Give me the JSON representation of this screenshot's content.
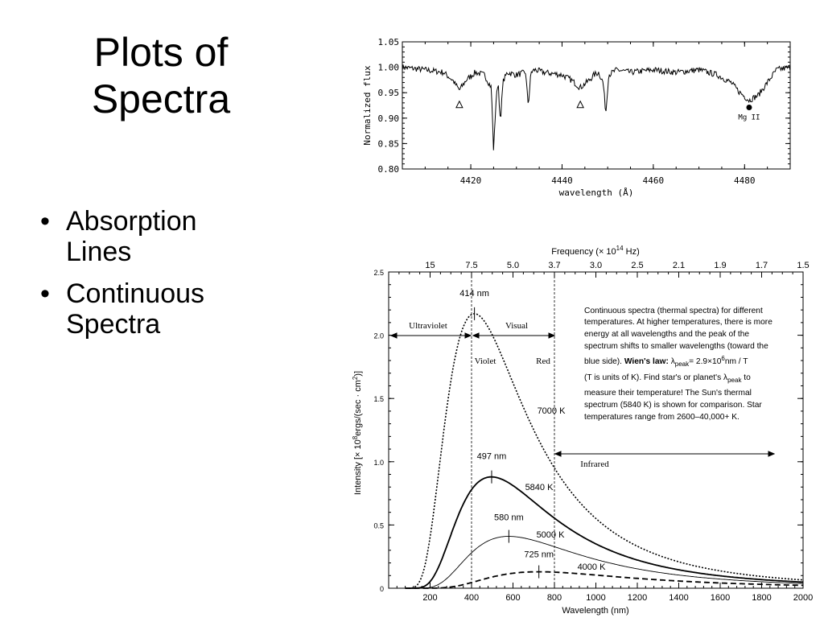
{
  "slide": {
    "title_lines": [
      "Plots of",
      "Spectra"
    ],
    "bullets": [
      "Absorption Lines",
      "Continuous Spectra"
    ]
  },
  "chart_data": [
    {
      "type": "line",
      "ylabel": "Normalized flux",
      "xlabel": "wavelength (Å)",
      "xlim": [
        4405,
        4490
      ],
      "ylim": [
        0.8,
        1.05
      ],
      "xticks": [
        4420,
        4440,
        4460,
        4480
      ],
      "xtick_labels": [
        "4420",
        "4440",
        "4460",
        "4480"
      ],
      "yticks": [
        0.8,
        0.85,
        0.9,
        0.95,
        1.0,
        1.05
      ],
      "ytick_labels": [
        "0.80",
        "0.85",
        "0.90",
        "0.95",
        "1.00",
        "1.05"
      ],
      "series": [
        {
          "x": [
            4405,
            4410,
            4414,
            4416,
            4417.5,
            4419,
            4421,
            4423,
            4424.5,
            4425,
            4425.5,
            4426,
            4426.5,
            4427,
            4428,
            4430,
            4432,
            4432.6,
            4433.2,
            4434,
            4436,
            4440,
            4442,
            4444,
            4446,
            4447,
            4448,
            4449,
            4449.6,
            4450.2,
            4452,
            4455,
            4460,
            4465,
            4470,
            4474,
            4477,
            4479,
            4481,
            4483,
            4485,
            4487,
            4490
          ],
          "y": [
            1.0,
            0.995,
            0.99,
            0.975,
            0.955,
            0.975,
            0.99,
            0.985,
            0.96,
            0.835,
            0.93,
            0.975,
            0.885,
            0.97,
            0.99,
            0.985,
            0.99,
            0.925,
            0.99,
            0.995,
            0.99,
            0.985,
            0.975,
            0.96,
            0.975,
            0.985,
            0.99,
            0.97,
            0.91,
            0.985,
            0.995,
            0.99,
            0.995,
            0.99,
            0.995,
            0.985,
            0.97,
            0.95,
            0.935,
            0.945,
            0.97,
            0.995,
            1.0
          ]
        }
      ],
      "annotations": [
        {
          "type": "open-triangle",
          "x": 4417.5,
          "y": 0.927,
          "label": ""
        },
        {
          "type": "open-triangle",
          "x": 4444,
          "y": 0.927,
          "label": ""
        },
        {
          "type": "filled-circle",
          "x": 4481,
          "y": 0.921,
          "label": "Mg II"
        }
      ]
    },
    {
      "type": "line",
      "xlabel": "Wavelength (nm)",
      "ylabel": "Intensity [× 10",
      "ylabel_sup": "8",
      "ylabel_tail": "ergs/(sec · cm",
      "ylabel_sup2": "2",
      "ylabel_end": ")]",
      "top_axis_label": "Frequency (× 10",
      "top_axis_sup": "14",
      "top_axis_tail": " Hz)",
      "xlim": [
        0,
        2000
      ],
      "ylim": [
        0,
        2.5
      ],
      "xticks": [
        200,
        400,
        600,
        800,
        1000,
        1200,
        1400,
        1600,
        1800,
        2000
      ],
      "xtick_labels": [
        "200",
        "400",
        "600",
        "800",
        "1000",
        "1200",
        "1400",
        "1600",
        "1800",
        "2000"
      ],
      "yticks": [
        0,
        0.5,
        1.0,
        1.5,
        2.0,
        2.5
      ],
      "ytick_labels": [
        "0",
        "0.5",
        "1.0",
        "1.5",
        "2.0",
        "2.5"
      ],
      "top_ticks": [
        {
          "wl": 200,
          "label": "15"
        },
        {
          "wl": 400,
          "label": "7.5"
        },
        {
          "wl": 600,
          "label": "5.0"
        },
        {
          "wl": 800,
          "label": "3.7"
        },
        {
          "wl": 1000,
          "label": "3.0"
        },
        {
          "wl": 1200,
          "label": "2.5"
        },
        {
          "wl": 1400,
          "label": "2.1"
        },
        {
          "wl": 1600,
          "label": "1.9"
        },
        {
          "wl": 1800,
          "label": "1.7"
        },
        {
          "wl": 2000,
          "label": "1.5"
        }
      ],
      "series": [
        {
          "name": "7000 K",
          "temperature": 7000,
          "peak_value": 2.17,
          "peak_label": "414 nm",
          "style": "dotted"
        },
        {
          "name": "5840 K",
          "temperature": 5840,
          "peak_value": 0.88,
          "peak_label": "497 nm",
          "style": "solid"
        },
        {
          "name": "5000 K",
          "temperature": 5000,
          "peak_value": 0.41,
          "peak_label": "580 nm",
          "style": "thin"
        },
        {
          "name": "4000 K",
          "temperature": 4000,
          "peak_value": 0.13,
          "peak_label": "725 nm",
          "style": "dashed"
        }
      ],
      "regions": {
        "dividers_nm": [
          400,
          800
        ],
        "ultraviolet": "Ultraviolet",
        "visual": "Visual",
        "violet": "Violet",
        "red": "Red",
        "infrared": "Infrared"
      },
      "description_lines": [
        "Continuous spectra (thermal spectra) for different",
        "temperatures. At higher temperatures, there is more",
        "energy at all wavelengths and the peak of the",
        "spectrum shifts to smaller wavelengths (toward the",
        "blue side)."
      ],
      "wien_bold": "Wien's law:",
      "wien_lambda": "λ",
      "wien_sub": "peak",
      "wien_eq": "= 2.9×10",
      "wien_sup": "6",
      "wien_tail": "nm / T",
      "line6_a": "(T is units of K). Find star's or planet's ",
      "line6_lambda": "λ",
      "line6_sub": "peak",
      "line6_tail": " to",
      "description_lines2": [
        "measure their temperature! The Sun's thermal",
        "spectrum (5840 K) is shown for comparison. Star",
        "temperatures range from 2600–40,000+ K."
      ]
    }
  ]
}
